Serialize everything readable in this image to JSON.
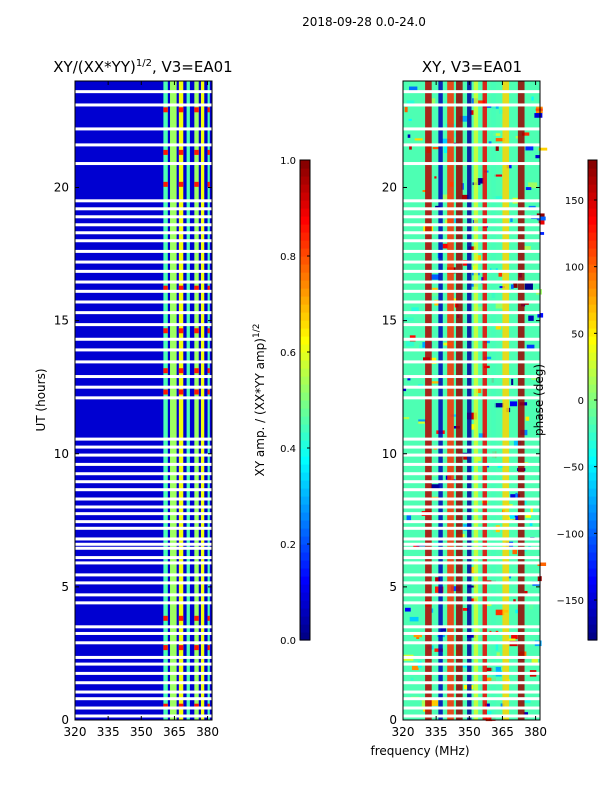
{
  "suptitle": "2018-09-28 0.0-24.0",
  "xlabel_shared": "frequency (MHz)",
  "chart_data": [
    {
      "type": "heatmap",
      "title_main": "XY/(XX*YY)",
      "title_sup": "1/2",
      "title_tail": ", V3=EA01",
      "ylabel": "UT (hours)",
      "xlim": [
        320,
        382
      ],
      "ylim": [
        0,
        24
      ],
      "xticks": [
        320,
        335,
        350,
        365,
        380
      ],
      "yticks": [
        0,
        5,
        10,
        15,
        20
      ],
      "colorbar": {
        "label_main": "XY amp. / (XX*YY amp)",
        "label_sup": "1/2",
        "range": [
          0.0,
          1.0
        ],
        "ticks": [
          "0.0",
          "0.2",
          "0.4",
          "0.6",
          "0.8",
          "1.0"
        ],
        "tick_values": [
          0.0,
          0.2,
          0.4,
          0.6,
          0.8,
          1.0
        ]
      },
      "colormap": "jet",
      "background_level": 0.08,
      "rfi_bands_mhz": [
        [
          360,
          362
        ],
        [
          363,
          366
        ],
        [
          367,
          369
        ],
        [
          370.5,
          372
        ],
        [
          374,
          376
        ],
        [
          377,
          378.5
        ],
        [
          380,
          381
        ]
      ],
      "rfi_level": 0.45,
      "hot_times_hours": [
        0.5,
        2.7,
        3.8,
        12.3,
        13.1,
        14.6,
        16.2,
        20.1,
        21.3,
        22.9
      ]
    },
    {
      "type": "heatmap",
      "title_main": "XY, V3=EA01",
      "xlim": [
        320,
        382
      ],
      "ylim": [
        0,
        24
      ],
      "xticks": [
        320,
        335,
        350,
        365,
        380
      ],
      "yticks": [
        0,
        5,
        10,
        15,
        20
      ],
      "colorbar": {
        "label_main": "phase (deg)",
        "range": [
          -180,
          180
        ],
        "ticks": [
          "−150",
          "−100",
          "−50",
          "0",
          "50",
          "100",
          "150"
        ],
        "tick_values": [
          -150,
          -100,
          -50,
          0,
          50,
          100,
          150
        ]
      },
      "colormap": "jet",
      "phase_bands_mhz": [
        [
          330,
          333,
          160
        ],
        [
          336,
          338,
          -160
        ],
        [
          340,
          343,
          120
        ],
        [
          344,
          347,
          170
        ],
        [
          349,
          351,
          -170
        ],
        [
          352,
          354,
          30
        ],
        [
          356,
          358,
          140
        ],
        [
          360,
          362,
          -20
        ],
        [
          365,
          368,
          60
        ],
        [
          372,
          375,
          170
        ]
      ]
    }
  ],
  "blank_rows_hours": [
    0.15,
    0.45,
    0.8,
    1.05,
    1.4,
    1.75,
    2.1,
    2.35,
    2.9,
    3.25,
    3.5,
    4.4,
    4.7,
    5.15,
    5.45,
    5.9,
    6.1,
    6.45,
    6.6,
    6.8,
    7.2,
    7.45,
    7.75,
    8.0,
    8.3,
    8.65,
    8.95,
    9.25,
    9.6,
    9.95,
    10.25,
    10.55,
    12.1,
    12.5,
    12.9,
    13.45,
    13.9,
    14.3,
    14.85,
    15.3,
    15.7,
    16.1,
    16.45,
    16.85,
    17.2,
    17.6,
    18.0,
    18.3,
    18.6,
    18.9,
    19.2,
    19.5,
    20.9,
    21.6,
    22.2,
    23.1,
    23.6
  ]
}
